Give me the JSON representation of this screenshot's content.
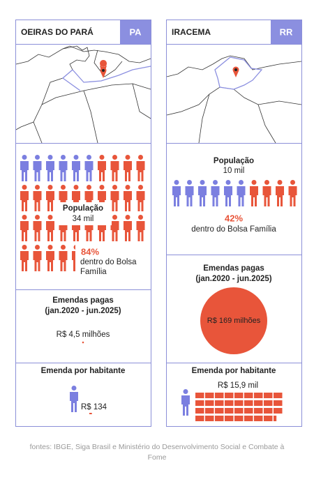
{
  "cards": [
    {
      "name": "OEIRAS DO PARÁ",
      "state": "PA",
      "population_label": "População",
      "population": "34 mil",
      "bolsa": {
        "value": 84,
        "label": "84%",
        "text": "dentro do Bolsa Família"
      },
      "emendas_title": "Emendas pagas",
      "period": "(jan.2020 - jun.2025)",
      "emendas": {
        "value": 4.5,
        "label": "R$ 4,5 milhões"
      },
      "per_hab_title": "Emenda por habitante",
      "per_hab": {
        "value": 134,
        "label": "R$ 134"
      }
    },
    {
      "name": "IRACEMA",
      "state": "RR",
      "population_label": "População",
      "population": "10 mil",
      "bolsa": {
        "value": 42,
        "label": "42%",
        "text": "dentro do Bolsa Família"
      },
      "emendas_title": "Emendas pagas",
      "period": "(jan.2020 - jun.2025)",
      "emendas": {
        "value": 169,
        "label": "R$ 169 milhões"
      },
      "per_hab_title": "Emenda por habitante",
      "per_hab": {
        "value": 15900,
        "label": "R$ 15,9 mil"
      }
    }
  ],
  "footer": "fontes: IBGE, Siga Brasil e Ministério do Desenvolvimento Social e Combate à Fome"
}
